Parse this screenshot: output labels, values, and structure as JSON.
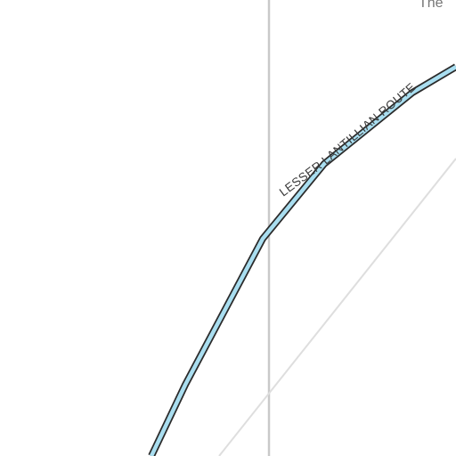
{
  "map": {
    "route": {
      "label": "LESSER LANTILLIAN ROUTE",
      "fill_color": "#a9def0",
      "casing_color": "#2b2b2b"
    },
    "corner_label": "The ",
    "background_color": "#ffffff",
    "gridline_color": "#c9c9c9",
    "diagonal_line_color": "#dedede"
  }
}
